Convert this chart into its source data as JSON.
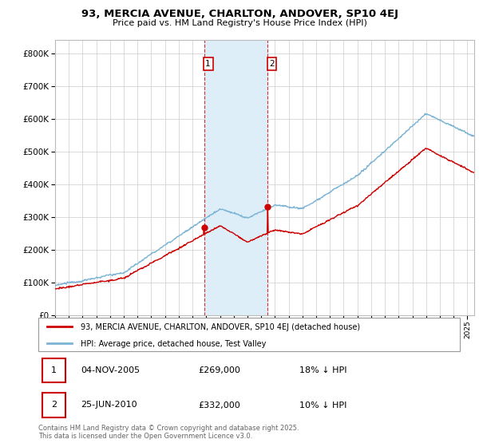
{
  "title": "93, MERCIA AVENUE, CHARLTON, ANDOVER, SP10 4EJ",
  "subtitle": "Price paid vs. HM Land Registry's House Price Index (HPI)",
  "ytick_vals": [
    0,
    100000,
    200000,
    300000,
    400000,
    500000,
    600000,
    700000,
    800000
  ],
  "ylim": [
    0,
    840000
  ],
  "xlim_start": 1995.0,
  "xlim_end": 2025.5,
  "transaction1": {
    "date_x": 2005.84,
    "price": 269000,
    "label": "1"
  },
  "transaction2": {
    "date_x": 2010.48,
    "price": 332000,
    "label": "2"
  },
  "hpi_color": "#7ab3d4",
  "price_color": "#cc0000",
  "shade_color": "#ddeef8",
  "legend_house": "93, MERCIA AVENUE, CHARLTON, ANDOVER, SP10 4EJ (detached house)",
  "legend_hpi": "HPI: Average price, detached house, Test Valley",
  "table_row1": [
    "1",
    "04-NOV-2005",
    "£269,000",
    "18% ↓ HPI"
  ],
  "table_row2": [
    "2",
    "25-JUN-2010",
    "£332,000",
    "10% ↓ HPI"
  ],
  "footnote": "Contains HM Land Registry data © Crown copyright and database right 2025.\nThis data is licensed under the Open Government Licence v3.0.",
  "grid_color": "#cccccc",
  "n_points": 750
}
